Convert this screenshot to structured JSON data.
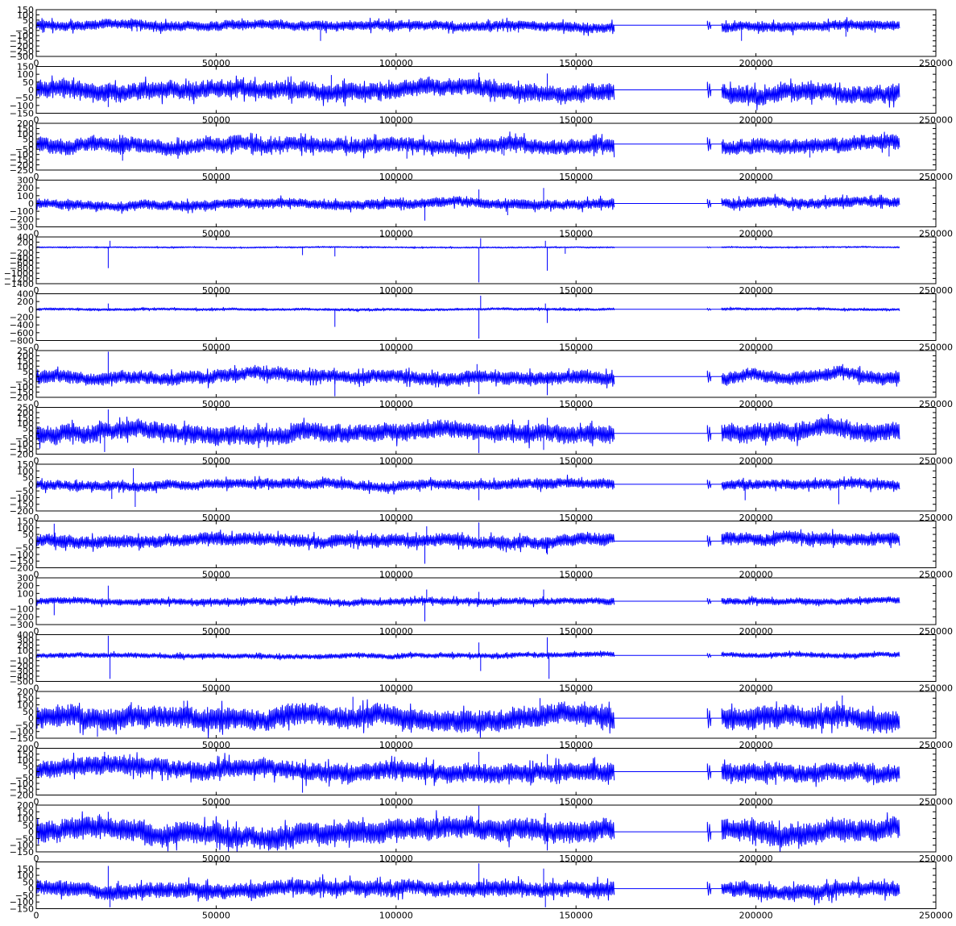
{
  "chart_data": {
    "type": "line",
    "layout": "16 vertically stacked subplots sharing the x range",
    "line_color": "#0000ff",
    "background": "#ffffff",
    "grid": false,
    "legend": "none",
    "xlim": [
      0,
      250000
    ],
    "xticks": [
      0,
      50000,
      100000,
      150000,
      200000,
      250000
    ],
    "segments": {
      "first_active": [
        0,
        160500
      ],
      "flat_gap_1": [
        160500,
        186500
      ],
      "short_blip": [
        186500,
        187500
      ],
      "flat_gap_2": [
        187500,
        190500
      ],
      "second_active": [
        190500,
        240000
      ]
    },
    "panels": [
      {
        "ylim": [
          -300,
          150
        ],
        "yticks": [
          150,
          100,
          50,
          0,
          -50,
          -100,
          -150,
          -200,
          -250,
          -300
        ],
        "amplitude": 45,
        "spikes": [
          [
            28000,
            -60
          ],
          [
            79000,
            -150
          ],
          [
            134000,
            -70
          ],
          [
            196000,
            -150
          ],
          [
            225000,
            -110
          ]
        ]
      },
      {
        "ylim": [
          -150,
          150
        ],
        "yticks": [
          150,
          100,
          50,
          0,
          -50,
          -100,
          -150
        ],
        "amplitude": 55,
        "spikes": [
          [
            20000,
            -110
          ],
          [
            82000,
            95
          ],
          [
            123000,
            110
          ],
          [
            142000,
            105
          ]
        ]
      },
      {
        "ylim": [
          -250,
          200
        ],
        "yticks": [
          200,
          150,
          100,
          50,
          0,
          -50,
          -100,
          -150,
          -200,
          -250
        ],
        "amplitude": 70,
        "spikes": [
          [
            24000,
            -160
          ],
          [
            103000,
            -140
          ],
          [
            130000,
            -110
          ],
          [
            215000,
            -130
          ],
          [
            237000,
            -120
          ]
        ]
      },
      {
        "ylim": [
          -300,
          300
        ],
        "yticks": [
          300,
          200,
          100,
          0,
          -100,
          -200,
          -300
        ],
        "amplitude": 60,
        "spikes": [
          [
            108000,
            -220
          ],
          [
            123000,
            180
          ],
          [
            131000,
            -150
          ],
          [
            141000,
            200
          ]
        ]
      },
      {
        "ylim": [
          -1400,
          400
        ],
        "yticks": [
          400,
          200,
          0,
          -200,
          -400,
          -600,
          -800,
          -1000,
          -1200,
          -1400
        ],
        "amplitude": 25,
        "spikes": [
          [
            20000,
            -800
          ],
          [
            20500,
            250
          ],
          [
            74000,
            -300
          ],
          [
            83000,
            -350
          ],
          [
            123000,
            -1350
          ],
          [
            123500,
            350
          ],
          [
            142000,
            -900
          ],
          [
            141500,
            250
          ],
          [
            147000,
            -250
          ]
        ]
      },
      {
        "ylim": [
          -800,
          400
        ],
        "yticks": [
          400,
          200,
          0,
          -200,
          -400,
          -600,
          -800
        ],
        "amplitude": 30,
        "spikes": [
          [
            20000,
            150
          ],
          [
            83000,
            -450
          ],
          [
            123000,
            -750
          ],
          [
            123500,
            350
          ],
          [
            142000,
            -350
          ],
          [
            141500,
            150
          ]
        ]
      },
      {
        "ylim": [
          -200,
          250
        ],
        "yticks": [
          250,
          200,
          150,
          100,
          50,
          0,
          -50,
          -100,
          -150,
          -200
        ],
        "amplitude": 60,
        "spikes": [
          [
            20000,
            240
          ],
          [
            83000,
            -190
          ],
          [
            123000,
            -170
          ],
          [
            122500,
            120
          ],
          [
            142000,
            -180
          ]
        ]
      },
      {
        "ylim": [
          -200,
          250
        ],
        "yticks": [
          250,
          200,
          150,
          100,
          50,
          0,
          -50,
          -100,
          -150,
          -200
        ],
        "amplitude": 85,
        "spikes": [
          [
            20000,
            230
          ],
          [
            19000,
            -180
          ],
          [
            123000,
            -190
          ],
          [
            142000,
            150
          ],
          [
            141000,
            -160
          ]
        ]
      },
      {
        "ylim": [
          -200,
          150
        ],
        "yticks": [
          150,
          100,
          50,
          0,
          -50,
          -100,
          -150,
          -200
        ],
        "amplitude": 35,
        "spikes": [
          [
            21000,
            -110
          ],
          [
            27000,
            120
          ],
          [
            27500,
            -170
          ],
          [
            123000,
            -120
          ],
          [
            197000,
            -120
          ],
          [
            223000,
            -150
          ]
        ]
      },
      {
        "ylim": [
          -200,
          150
        ],
        "yticks": [
          150,
          100,
          50,
          0,
          -50,
          -100,
          -150,
          -200
        ],
        "amplitude": 45,
        "spikes": [
          [
            5000,
            130
          ],
          [
            108000,
            -170
          ],
          [
            108500,
            110
          ],
          [
            123000,
            140
          ],
          [
            142000,
            -100
          ]
        ]
      },
      {
        "ylim": [
          -300,
          300
        ],
        "yticks": [
          300,
          200,
          100,
          0,
          -100,
          -200,
          -300
        ],
        "amplitude": 40,
        "spikes": [
          [
            5000,
            -180
          ],
          [
            20000,
            200
          ],
          [
            108000,
            -260
          ],
          [
            108500,
            150
          ],
          [
            123000,
            120
          ],
          [
            141000,
            150
          ]
        ]
      },
      {
        "ylim": [
          -500,
          400
        ],
        "yticks": [
          400,
          300,
          200,
          100,
          0,
          -100,
          -200,
          -300,
          -400,
          -500
        ],
        "amplitude": 45,
        "spikes": [
          [
            20000,
            380
          ],
          [
            20500,
            -450
          ],
          [
            123000,
            250
          ],
          [
            123500,
            -300
          ],
          [
            142000,
            350
          ],
          [
            142500,
            -450
          ]
        ]
      },
      {
        "ylim": [
          -150,
          200
        ],
        "yticks": [
          200,
          150,
          100,
          50,
          0,
          -50,
          -100,
          -150
        ],
        "amplitude": 80,
        "spikes": [
          [
            17000,
            -140
          ],
          [
            41000,
            130
          ],
          [
            88000,
            160
          ],
          [
            140000,
            150
          ],
          [
            224000,
            170
          ]
        ]
      },
      {
        "ylim": [
          -200,
          200
        ],
        "yticks": [
          200,
          150,
          100,
          50,
          0,
          -50,
          -100,
          -150,
          -200
        ],
        "amplitude": 75,
        "spikes": [
          [
            19000,
            170
          ],
          [
            74000,
            -180
          ],
          [
            123000,
            170
          ],
          [
            142000,
            150
          ]
        ]
      },
      {
        "ylim": [
          -150,
          200
        ],
        "yticks": [
          200,
          150,
          100,
          50,
          0,
          -50,
          -100,
          -150
        ],
        "amplitude": 80,
        "spikes": [
          [
            20000,
            150
          ],
          [
            123000,
            195
          ],
          [
            142000,
            -140
          ],
          [
            141500,
            140
          ]
        ]
      },
      {
        "ylim": [
          -150,
          200
        ],
        "yticks": [
          150,
          100,
          50,
          0,
          -50,
          -100,
          -150
        ],
        "amplitude": 55,
        "spikes": [
          [
            20000,
            170
          ],
          [
            20500,
            -140
          ],
          [
            123000,
            190
          ],
          [
            141000,
            150
          ],
          [
            141500,
            -140
          ]
        ]
      }
    ]
  }
}
